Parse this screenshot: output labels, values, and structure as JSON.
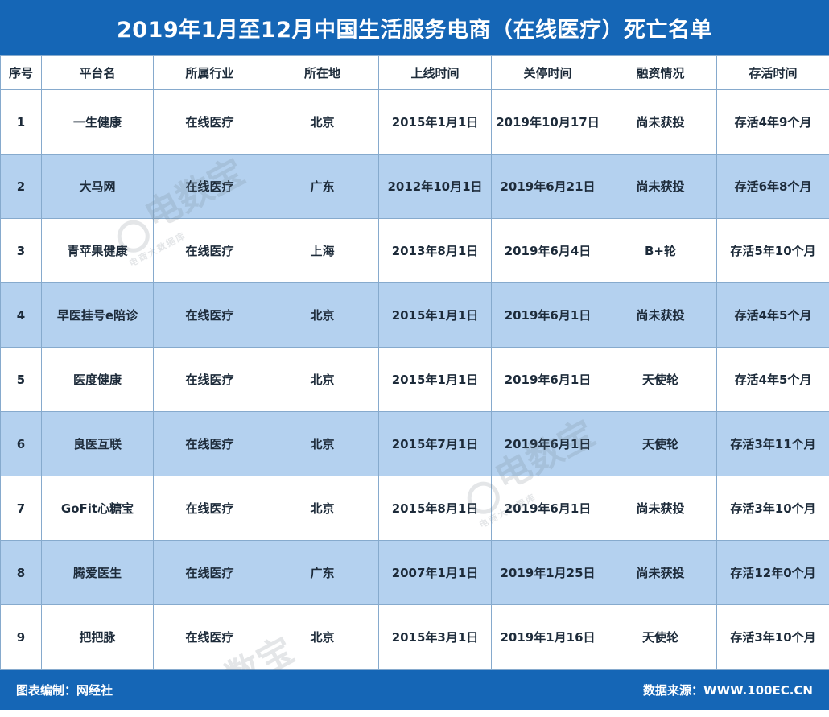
{
  "title": "2019年1月至12月中国生活服务电商（在线医疗）死亡名单",
  "table": {
    "headers": [
      "序号",
      "平台名",
      "所属行业",
      "所在地",
      "上线时间",
      "关停时间",
      "融资情况",
      "存活时间"
    ],
    "rows": [
      [
        "1",
        "一生健康",
        "在线医疗",
        "北京",
        "2015年1月1日",
        "2019年10月17日",
        "尚未获投",
        "存活4年9个月"
      ],
      [
        "2",
        "大马网",
        "在线医疗",
        "广东",
        "2012年10月1日",
        "2019年6月21日",
        "尚未获投",
        "存活6年8个月"
      ],
      [
        "3",
        "青苹果健康",
        "在线医疗",
        "上海",
        "2013年8月1日",
        "2019年6月4日",
        "B+轮",
        "存活5年10个月"
      ],
      [
        "4",
        "早医挂号e陪诊",
        "在线医疗",
        "北京",
        "2015年1月1日",
        "2019年6月1日",
        "尚未获投",
        "存活4年5个月"
      ],
      [
        "5",
        "医度健康",
        "在线医疗",
        "北京",
        "2015年1月1日",
        "2019年6月1日",
        "天使轮",
        "存活4年5个月"
      ],
      [
        "6",
        "良医互联",
        "在线医疗",
        "北京",
        "2015年7月1日",
        "2019年6月1日",
        "天使轮",
        "存活3年11个月"
      ],
      [
        "7",
        "GoFit心糖宝",
        "在线医疗",
        "北京",
        "2015年8月1日",
        "2019年6月1日",
        "尚未获投",
        "存活3年10个月"
      ],
      [
        "8",
        "腾爱医生",
        "在线医疗",
        "广东",
        "2007年1月1日",
        "2019年1月25日",
        "尚未获投",
        "存活12年0个月"
      ],
      [
        "9",
        "把把脉",
        "在线医疗",
        "北京",
        "2015年3月1日",
        "2019年1月16日",
        "天使轮",
        "存活3年10个月"
      ]
    ]
  },
  "footer": {
    "left": "图表编制：网经社",
    "right": "数据来源：WWW.100EC.CN"
  },
  "watermark": {
    "logo": "电数宝",
    "sub": "电商大数据库",
    "icon": "ebrain-logo-icon"
  },
  "colors": {
    "header_blue": "#1566b6",
    "row_alt": "#b4d1ef",
    "border": "#86aacd"
  }
}
